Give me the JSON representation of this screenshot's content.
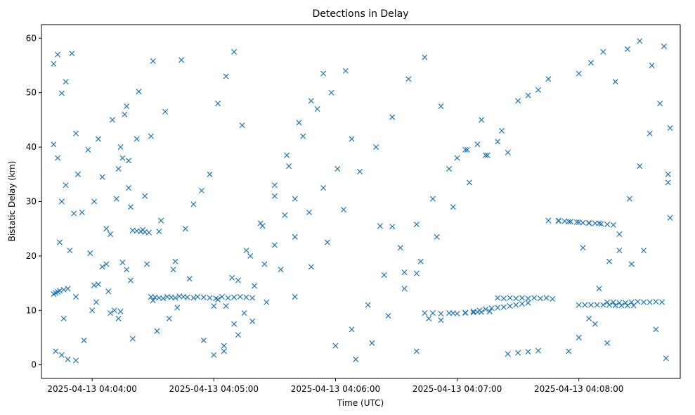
{
  "chart_data": {
    "type": "scatter",
    "title": "Detections in Delay",
    "xlabel": "Time (UTC)",
    "ylabel": "Bistatic Delay (km)",
    "x_unit": "time",
    "xlim": [
      "2025-04-13 04:03:35",
      "2025-04-13 04:08:50"
    ],
    "ylim": [
      -2.5,
      62.5
    ],
    "x_ticks": [
      "2025-04-13 04:04:00",
      "2025-04-13 04:05:00",
      "2025-04-13 04:06:00",
      "2025-04-13 04:07:00",
      "2025-04-13 04:08:00"
    ],
    "y_ticks": [
      0,
      10,
      20,
      30,
      40,
      50,
      60
    ],
    "grid": false,
    "legend": false,
    "marker": "x",
    "color": "#1f77b4",
    "series": [
      {
        "x": [
          "04:03:41",
          "04:03:42",
          "04:03:43",
          "04:03:44",
          "04:03:46",
          "04:03:48",
          "04:03:41",
          "04:03:43",
          "04:03:45",
          "04:03:47",
          "04:03:50",
          "04:03:53",
          "04:03:42",
          "04:03:45",
          "04:03:48",
          "04:03:52",
          "04:03:56",
          "04:04:02",
          "04:04:08",
          "04:04:14",
          "04:04:20",
          "04:04:27",
          "04:03:41",
          "04:03:43",
          "04:03:47",
          "04:03:52",
          "04:03:58",
          "04:04:03",
          "04:04:10",
          "04:04:17",
          "04:04:23",
          "04:04:30",
          "04:03:46",
          "04:03:52",
          "04:04:00",
          "04:04:07",
          "04:04:12",
          "04:04:19",
          "04:04:25",
          "04:04:33",
          "04:04:40",
          "04:04:48",
          "04:03:44",
          "04:03:49",
          "04:03:55",
          "04:04:01",
          "04:04:09",
          "04:04:15",
          "04:04:22",
          "04:04:29",
          "04:04:36",
          "04:04:44",
          "04:03:45",
          "04:03:51",
          "04:03:59",
          "04:04:05",
          "04:04:13",
          "04:04:18",
          "04:04:26",
          "04:04:34",
          "04:04:41",
          "04:04:50",
          "04:04:01",
          "04:04:03",
          "04:04:05",
          "04:04:07",
          "04:04:09",
          "04:04:11",
          "04:04:13",
          "04:04:15",
          "04:04:17",
          "04:04:19",
          "04:04:14",
          "04:04:16",
          "04:04:18",
          "04:04:20",
          "04:04:22",
          "04:04:24",
          "04:04:26",
          "04:04:28",
          "04:04:30",
          "04:04:32",
          "04:04:29",
          "04:04:31",
          "04:04:33",
          "04:04:35",
          "04:04:37",
          "04:04:39",
          "04:04:41",
          "04:04:43",
          "04:04:45",
          "04:04:47",
          "04:04:38",
          "04:04:42",
          "04:04:46",
          "04:04:50",
          "04:04:54",
          "04:04:58",
          "04:05:02",
          "04:05:06",
          "04:05:10",
          "04:05:14",
          "04:04:52",
          "04:04:55",
          "04:04:58",
          "04:05:01",
          "04:05:04",
          "04:05:07",
          "04:05:10",
          "04:05:13",
          "04:05:16",
          "04:05:19",
          "04:04:55",
          "04:05:00",
          "04:05:05",
          "04:05:10",
          "04:05:15",
          "04:05:20",
          "04:05:25",
          "04:05:30",
          "04:05:35",
          "04:05:40",
          "04:05:00",
          "04:05:06",
          "04:05:12",
          "04:05:18",
          "04:05:24",
          "04:05:30",
          "04:05:36",
          "04:05:42",
          "04:05:48",
          "04:05:54",
          "04:05:02",
          "04:05:09",
          "04:05:16",
          "04:05:23",
          "04:05:30",
          "04:05:37",
          "04:05:44",
          "04:05:51",
          "04:05:58",
          "04:06:05",
          "04:05:05",
          "04:05:12",
          "04:05:19",
          "04:05:26",
          "04:05:33",
          "04:05:40",
          "04:05:47",
          "04:05:54",
          "04:06:01",
          "04:06:08",
          "04:05:40",
          "04:05:48",
          "04:05:56",
          "04:06:04",
          "04:06:12",
          "04:06:20",
          "04:06:28",
          "04:06:36",
          "04:06:44",
          "04:06:52",
          "04:06:00",
          "04:06:08",
          "04:06:16",
          "04:06:24",
          "04:06:32",
          "04:06:40",
          "04:06:48",
          "04:06:56",
          "04:07:04",
          "04:07:12",
          "04:06:10",
          "04:06:18",
          "04:06:26",
          "04:06:34",
          "04:06:42",
          "04:06:50",
          "04:06:58",
          "04:07:06",
          "04:07:14",
          "04:07:22",
          "04:06:22",
          "04:06:28",
          "04:06:34",
          "04:06:40",
          "04:06:46",
          "04:06:52",
          "04:06:58",
          "04:07:04",
          "04:07:10",
          "04:07:16",
          "04:06:40",
          "04:06:44",
          "04:06:48",
          "04:06:52",
          "04:06:56",
          "04:07:00",
          "04:07:04",
          "04:07:08",
          "04:07:12",
          "04:07:16",
          "04:07:08",
          "04:07:11",
          "04:07:14",
          "04:07:17",
          "04:07:20",
          "04:07:23",
          "04:07:26",
          "04:07:29",
          "04:07:32",
          "04:07:35",
          "04:07:20",
          "04:07:23",
          "04:07:26",
          "04:07:29",
          "04:07:32",
          "04:07:35",
          "04:07:38",
          "04:07:41",
          "04:07:44",
          "04:07:47",
          "04:07:00",
          "04:07:05",
          "04:07:10",
          "04:07:15",
          "04:07:20",
          "04:07:25",
          "04:07:30",
          "04:07:35",
          "04:07:40",
          "04:07:45",
          "04:07:25",
          "04:07:30",
          "04:07:35",
          "04:07:40",
          "04:07:45",
          "04:07:50",
          "04:07:55",
          "04:08:00",
          "04:08:05",
          "04:08:10",
          "04:07:50",
          "04:07:53",
          "04:07:56",
          "04:07:59",
          "04:08:02",
          "04:08:05",
          "04:08:08",
          "04:08:11",
          "04:08:14",
          "04:08:17",
          "04:08:00",
          "04:08:03",
          "04:08:06",
          "04:08:09",
          "04:08:12",
          "04:08:15",
          "04:08:18",
          "04:08:21",
          "04:08:24",
          "04:08:27",
          "04:08:14",
          "04:08:17",
          "04:08:20",
          "04:08:23",
          "04:08:26",
          "04:08:29",
          "04:08:32",
          "04:08:35",
          "04:08:38",
          "04:08:41",
          "04:07:55",
          "04:08:00",
          "04:08:05",
          "04:08:10",
          "04:08:15",
          "04:08:20",
          "04:08:25",
          "04:08:30",
          "04:08:35",
          "04:08:40",
          "04:08:00",
          "04:08:06",
          "04:08:12",
          "04:08:18",
          "04:08:24",
          "04:08:30",
          "04:08:36",
          "04:08:42",
          "04:08:44",
          "04:08:45",
          "04:08:02",
          "04:08:08",
          "04:08:14",
          "04:08:20",
          "04:08:26",
          "04:08:32",
          "04:08:38",
          "04:08:43",
          "04:08:44",
          "04:08:45"
        ],
        "y": [
          13.0,
          13.2,
          13.4,
          13.6,
          13.8,
          14.0,
          55.3,
          57.0,
          49.9,
          52.0,
          57.2,
          35.0,
          2.5,
          1.8,
          1.0,
          0.8,
          4.5,
          11.5,
          13.5,
          9.8,
          4.8,
          18.5,
          40.5,
          38.0,
          33.0,
          42.5,
          39.5,
          41.5,
          45.0,
          47.5,
          50.2,
          55.8,
          8.5,
          12.5,
          10.0,
          25.0,
          30.5,
          29.0,
          24.8,
          24.5,
          17.5,
          15.8,
          22.5,
          21.0,
          28.0,
          30.0,
          24.0,
          38.0,
          41.5,
          42.0,
          46.5,
          56.0,
          30.0,
          27.8,
          20.5,
          34.5,
          36.0,
          37.5,
          31.0,
          26.5,
          19.0,
          12.3,
          14.6,
          14.8,
          18.0,
          18.5,
          9.5,
          10.0,
          8.5,
          18.8,
          17.5,
          15.5,
          40.0,
          46.0,
          32.5,
          24.7,
          24.6,
          24.5,
          24.4,
          24.3,
          11.8,
          6.2,
          12.5,
          12.4,
          12.3,
          12.2,
          12.5,
          12.4,
          12.3,
          12.6,
          12.5,
          12.4,
          8.5,
          10.5,
          25.0,
          29.5,
          32.0,
          35.0,
          48.0,
          53.0,
          57.5,
          44.0,
          12.5,
          12.4,
          12.3,
          12.2,
          12.5,
          12.3,
          12.4,
          12.5,
          12.4,
          12.3,
          4.5,
          1.8,
          3.5,
          7.5,
          9.5,
          14.5,
          18.5,
          22.0,
          27.5,
          30.5,
          10.8,
          10.8,
          15.5,
          20.0,
          25.5,
          31.0,
          38.5,
          44.5,
          48.5,
          53.5,
          12.0,
          16.0,
          21.0,
          26.0,
          33.0,
          36.5,
          42.0,
          47.0,
          50.0,
          54.0,
          2.5,
          5.5,
          8.0,
          11.5,
          17.5,
          23.5,
          28.0,
          32.5,
          36.0,
          41.5,
          12.5,
          18.0,
          22.5,
          28.5,
          35.5,
          40.0,
          45.5,
          52.5,
          56.5,
          47.5,
          3.5,
          6.5,
          11.0,
          16.5,
          21.5,
          25.8,
          30.5,
          36.0,
          39.5,
          45.0,
          1.0,
          4.0,
          9.0,
          14.0,
          19.0,
          23.5,
          29.0,
          33.5,
          38.5,
          43.0,
          25.5,
          25.4,
          17.0,
          16.8,
          8.5,
          8.2,
          9.5,
          9.6,
          9.7,
          9.8,
          2.5,
          9.5,
          9.5,
          9.4,
          9.5,
          9.4,
          9.5,
          9.6,
          9.7,
          9.8,
          9.8,
          10.0,
          10.2,
          10.4,
          10.5,
          10.6,
          10.8,
          11.0,
          11.2,
          11.4,
          12.3,
          12.2,
          12.3,
          12.2,
          12.3,
          12.2,
          12.3,
          12.2,
          12.3,
          12.1,
          38.0,
          39.5,
          40.5,
          38.5,
          41.0,
          39.0,
          48.5,
          49.5,
          50.5,
          52.5,
          2.0,
          2.2,
          2.4,
          2.6,
          26.5,
          26.4,
          26.3,
          26.2,
          26.1,
          26.0,
          26.5,
          26.4,
          26.3,
          26.2,
          26.1,
          26.0,
          26.0,
          25.9,
          25.8,
          25.7,
          11.0,
          11.0,
          11.0,
          11.0,
          11.0,
          11.0,
          10.9,
          10.9,
          10.9,
          10.9,
          11.5,
          11.5,
          11.4,
          11.4,
          11.5,
          11.6,
          11.5,
          11.5,
          11.6,
          11.5,
          2.5,
          5.0,
          8.5,
          14.0,
          19.0,
          24.0,
          30.5,
          36.5,
          42.5,
          48.0,
          53.5,
          55.5,
          57.5,
          52.0,
          58.0,
          59.5,
          55.0,
          58.5,
          33.5,
          43.5,
          21.5,
          7.5,
          4.0,
          21.0,
          18.5,
          21.0,
          6.5,
          1.2,
          35.0,
          27.0
        ]
      }
    ]
  }
}
